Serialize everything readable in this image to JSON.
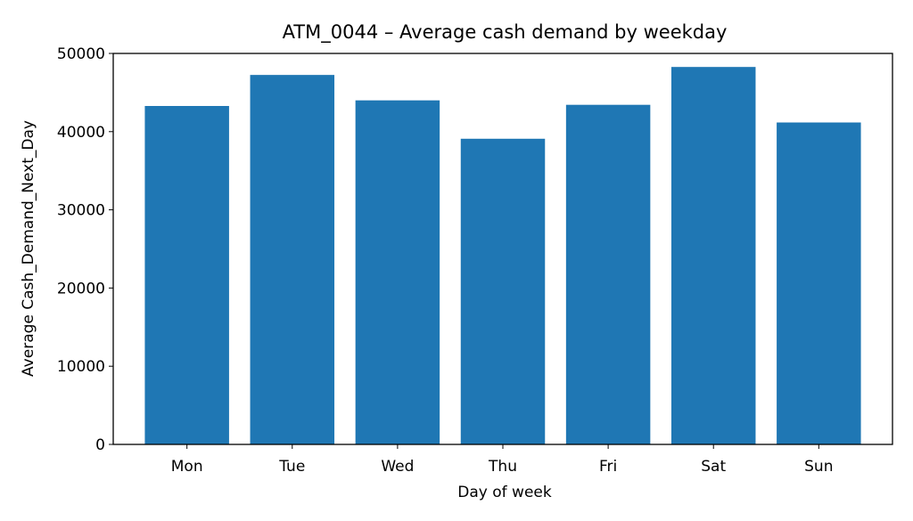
{
  "chart_data": {
    "type": "bar",
    "title": "ATM_0044 – Average cash demand by weekday",
    "xlabel": "Day of week",
    "ylabel": "Average Cash_Demand_Next_Day",
    "categories": [
      "Mon",
      "Tue",
      "Wed",
      "Thu",
      "Fri",
      "Sat",
      "Sun"
    ],
    "values": [
      43280,
      47250,
      44000,
      39090,
      43430,
      48270,
      41170
    ],
    "ylim": [
      0,
      50000
    ],
    "yticks": [
      0,
      10000,
      20000,
      30000,
      40000,
      50000
    ],
    "bar_color": "#1f77b4",
    "grid": false
  }
}
